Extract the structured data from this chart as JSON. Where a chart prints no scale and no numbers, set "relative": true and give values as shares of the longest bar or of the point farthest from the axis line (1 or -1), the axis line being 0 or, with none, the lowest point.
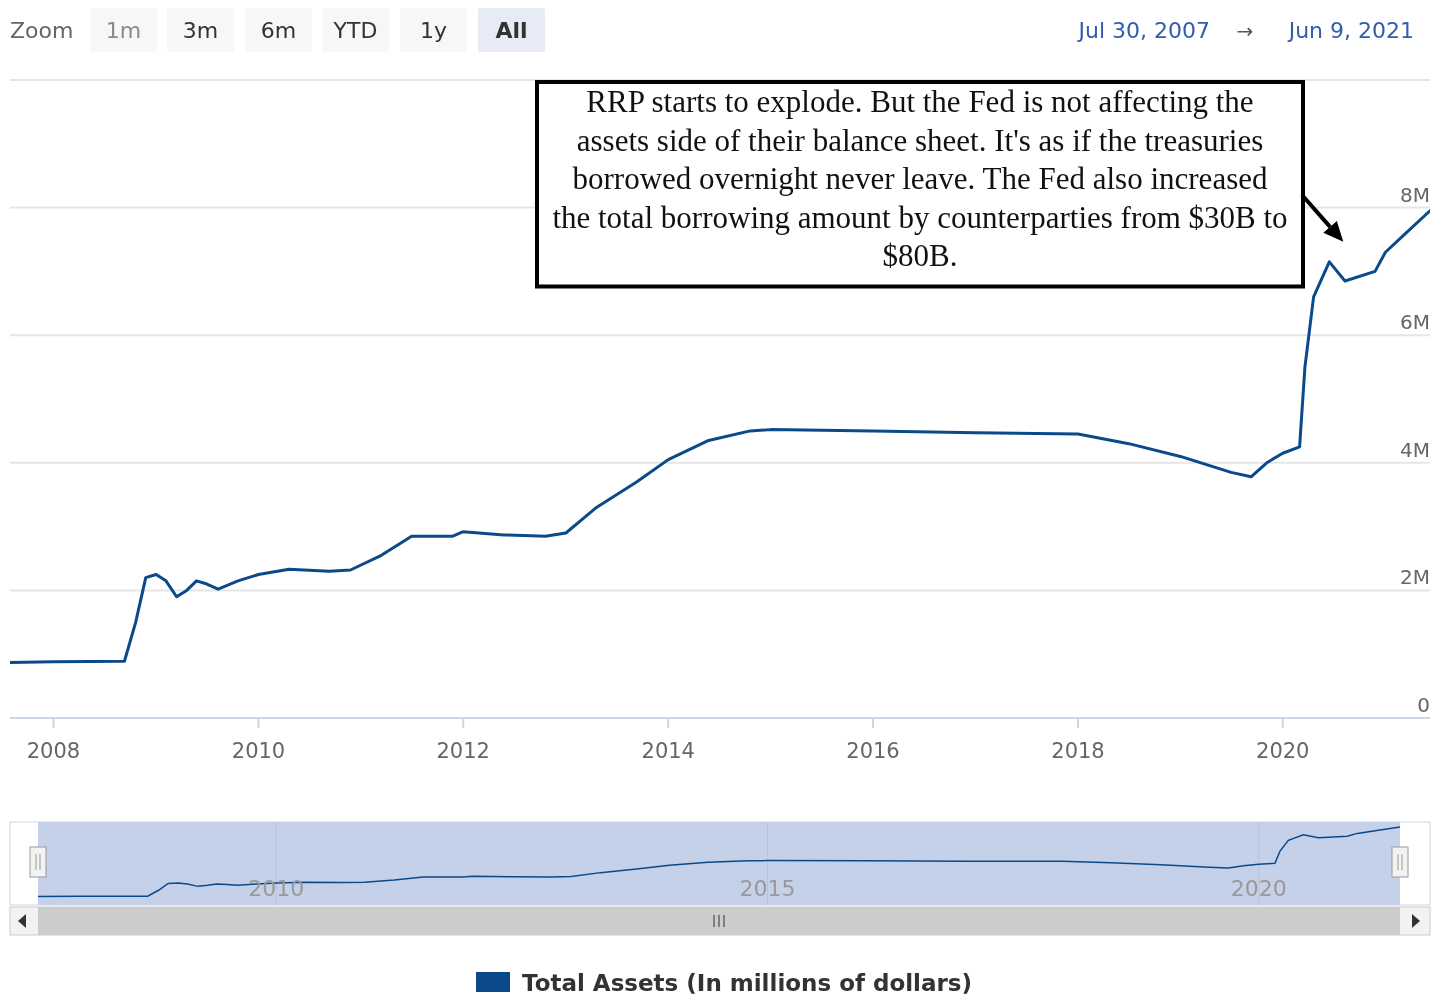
{
  "chart_data": [
    {
      "type": "line",
      "xlim": [
        "2007-07-30",
        "2021-06-09"
      ],
      "ylim": [
        0,
        10000000
      ],
      "xticks": [
        "2008",
        "2010",
        "2012",
        "2014",
        "2016",
        "2018",
        "2020"
      ],
      "yticks": [
        0,
        {
          "value": 2000000,
          "label": "2M"
        },
        {
          "value": 4000000,
          "label": "4M"
        },
        {
          "value": 6000000,
          "label": "6M"
        },
        {
          "value": 8000000,
          "label": "8M"
        }
      ],
      "grid": "y",
      "legend": "bottom",
      "series": [
        {
          "name": "Total Assets (In millions of dollars)",
          "color": "#0b4a8a",
          "x": [
            "2007-07-30",
            "2008-01-01",
            "2008-09-10",
            "2008-10-20",
            "2008-11-25",
            "2009-01-01",
            "2009-02-05",
            "2009-03-15",
            "2009-04-20",
            "2009-05-25",
            "2009-07-01",
            "2009-08-10",
            "2009-10-20",
            "2010-01-01",
            "2010-04-20",
            "2010-09-10",
            "2010-11-25",
            "2011-03-15",
            "2011-07-01",
            "2011-11-25",
            "2012-01-01",
            "2012-05-25",
            "2012-10-20",
            "2013-01-01",
            "2013-04-20",
            "2013-09-10",
            "2014-01-01",
            "2014-05-25",
            "2014-10-20",
            "2015-01-01",
            "2016-01-01",
            "2017-01-01",
            "2018-01-01",
            "2018-07-01",
            "2019-01-01",
            "2019-07-01",
            "2019-09-10",
            "2019-11-05",
            "2020-01-01",
            "2020-03-01",
            "2020-03-20",
            "2020-04-20",
            "2020-06-15",
            "2020-08-10",
            "2020-11-25",
            "2021-01-01",
            "2021-03-15",
            "2021-06-09"
          ],
          "values": [
            870000,
            880000,
            890000,
            1500000,
            2200000,
            2250000,
            2150000,
            1900000,
            2000000,
            2150000,
            2100000,
            2020000,
            2150000,
            2250000,
            2330000,
            2300000,
            2320000,
            2550000,
            2850000,
            2850000,
            2920000,
            2870000,
            2850000,
            2900000,
            3300000,
            3700000,
            4050000,
            4350000,
            4500000,
            4520000,
            4500000,
            4470000,
            4450000,
            4300000,
            4100000,
            3850000,
            3780000,
            4000000,
            4150000,
            4250000,
            5500000,
            6600000,
            7150000,
            6850000,
            7000000,
            7300000,
            7600000,
            7950000
          ]
        }
      ],
      "annotations": [
        {
          "text": "RRP starts to explode. But the Fed is not affecting the assets side of their balance sheet. It's as if the treasuries borrowed overnight never leave. The Fed also increased the total borrowing amount by counterparties from $30B to $80B.",
          "x": "2020-06-15",
          "y": 7150000
        },
        "Zoom",
        "1m",
        "3m",
        "6m",
        "YTD",
        "1y",
        "All",
        "Jul 30, 2007",
        "→",
        "Jun 9, 2021"
      ]
    },
    {
      "type": "line",
      "relative": true,
      "xlim": [
        "2007-07-30",
        "2021-06-09"
      ],
      "xticks": [
        "2010",
        "2015",
        "2020"
      ],
      "tick_labels": "x",
      "grid": "x",
      "series": [
        {
          "color": "#0b4a8a",
          "x": [
            "2007-07-30",
            "2008-01-01",
            "2008-09-10",
            "2008-10-20",
            "2008-11-25",
            "2009-01-01",
            "2009-02-05",
            "2009-03-15",
            "2009-04-20",
            "2009-05-25",
            "2009-07-01",
            "2009-08-10",
            "2009-10-20",
            "2010-01-01",
            "2010-04-20",
            "2010-09-10",
            "2010-11-25",
            "2011-03-15",
            "2011-07-01",
            "2011-11-25",
            "2012-01-01",
            "2012-05-25",
            "2012-10-20",
            "2013-01-01",
            "2013-04-20",
            "2013-09-10",
            "2014-01-01",
            "2014-05-25",
            "2014-10-20",
            "2015-01-01",
            "2016-01-01",
            "2017-01-01",
            "2018-01-01",
            "2018-07-01",
            "2019-01-01",
            "2019-07-01",
            "2019-09-10",
            "2019-11-05",
            "2020-01-01",
            "2020-03-01",
            "2020-03-20",
            "2020-04-20",
            "2020-06-15",
            "2020-08-10",
            "2020-11-25",
            "2021-01-01",
            "2021-03-15",
            "2021-06-09"
          ],
          "values": [
            0.109,
            0.111,
            0.112,
            0.189,
            0.277,
            0.283,
            0.27,
            0.239,
            0.252,
            0.27,
            0.264,
            0.254,
            0.27,
            0.283,
            0.293,
            0.289,
            0.292,
            0.321,
            0.358,
            0.358,
            0.367,
            0.361,
            0.358,
            0.365,
            0.415,
            0.465,
            0.509,
            0.547,
            0.566,
            0.569,
            0.566,
            0.562,
            0.56,
            0.541,
            0.516,
            0.484,
            0.475,
            0.503,
            0.522,
            0.535,
            0.692,
            0.83,
            0.899,
            0.862,
            0.881,
            0.918,
            0.956,
            1
          ]
        }
      ]
    }
  ]
}
